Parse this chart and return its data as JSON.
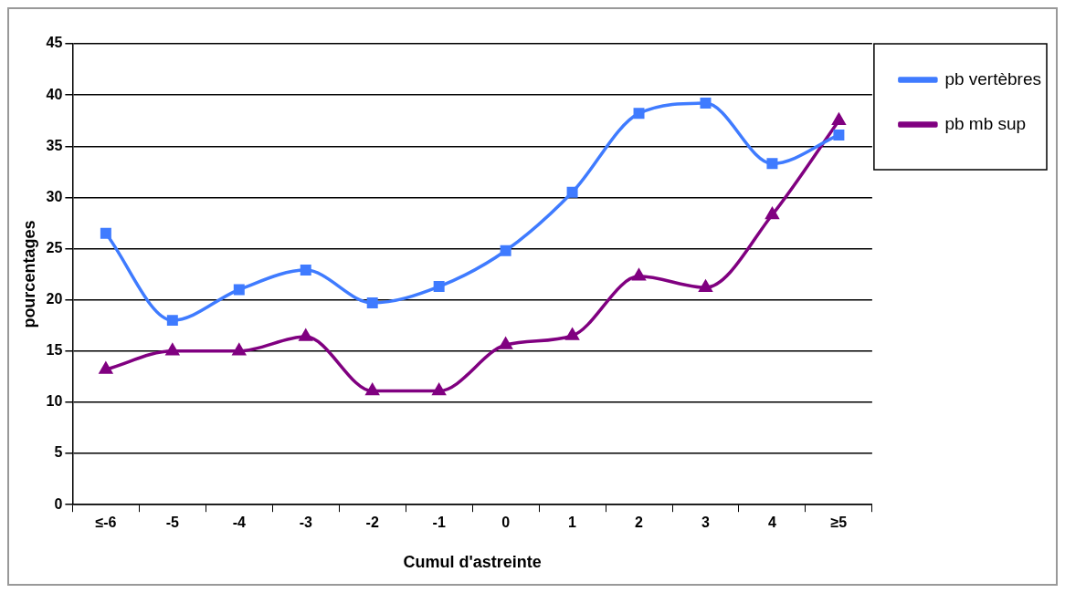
{
  "chart_data": {
    "type": "line",
    "xlabel": "Cumul d'astreinte",
    "ylabel": "pourcentages",
    "categories": [
      "≤-6",
      "-5",
      "-4",
      "-3",
      "-2",
      "-1",
      "0",
      "1",
      "2",
      "3",
      "4",
      "≥5"
    ],
    "series": [
      {
        "name": "pb vertèbres",
        "color": "#3f7bff",
        "marker": "square",
        "values": [
          26.5,
          18.0,
          21.0,
          22.9,
          19.7,
          21.3,
          24.8,
          30.5,
          38.2,
          39.2,
          33.3,
          36.1
        ]
      },
      {
        "name": "pb mb sup",
        "color": "#800080",
        "marker": "triangle",
        "values": [
          13.2,
          15.0,
          15.0,
          16.4,
          11.1,
          11.1,
          15.6,
          16.5,
          22.3,
          21.2,
          28.3,
          37.5
        ]
      }
    ],
    "ylim": [
      0,
      45
    ],
    "yticks": [
      0,
      5,
      10,
      15,
      20,
      25,
      30,
      35,
      40,
      45
    ],
    "grid": "y",
    "legend": "top right",
    "line_style": "solid"
  }
}
